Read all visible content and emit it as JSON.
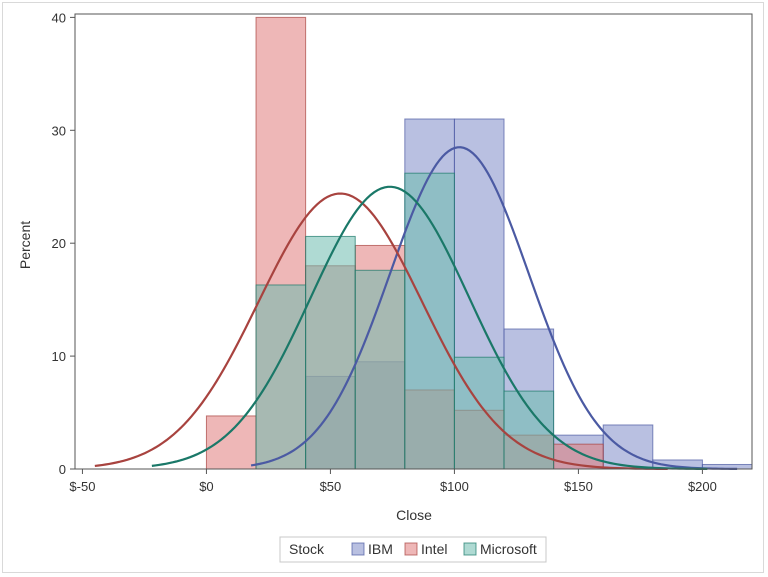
{
  "chart_data": {
    "type": "histogram",
    "xlabel": "Close",
    "ylabel": "Percent",
    "xlim": [
      -53,
      220
    ],
    "ylim": [
      0,
      40.3
    ],
    "x_ticks": [
      -50,
      0,
      50,
      100,
      150,
      200
    ],
    "x_tick_labels": [
      "$-50",
      "$0",
      "$50",
      "$100",
      "$150",
      "$200"
    ],
    "y_ticks": [
      0,
      10,
      20,
      30,
      40
    ],
    "y_tick_labels": [
      "0",
      "10",
      "20",
      "30",
      "40"
    ],
    "bin_edges": [
      0,
      20,
      40,
      60,
      80,
      100,
      120,
      140,
      160,
      180,
      200,
      220
    ],
    "legend": {
      "title": "Stock",
      "position": "bottom"
    },
    "series": [
      {
        "name": "IBM",
        "color": "#7f8cc9",
        "curve_color": "#4b5aa3",
        "values": [
          0,
          0,
          8.2,
          9.5,
          31,
          31,
          12.4,
          3,
          3.9,
          0.8,
          0.4
        ],
        "normal_fit": {
          "mean": 102,
          "sd": 28,
          "peak": 28.5
        }
      },
      {
        "name": "Intel",
        "color": "#e07b7b",
        "curve_color": "#a8433f",
        "values": [
          4.7,
          40,
          18,
          19.8,
          7,
          5.2,
          3,
          2.2,
          0,
          0,
          0
        ],
        "normal_fit": {
          "mean": 54,
          "sd": 33,
          "peak": 24.4
        }
      },
      {
        "name": "Microsoft",
        "color": "#6dbcae",
        "curve_color": "#1a7868",
        "values": [
          0,
          16.3,
          20.6,
          17.6,
          26.2,
          9.9,
          6.9,
          0,
          0,
          0,
          0
        ],
        "normal_fit": {
          "mean": 74,
          "sd": 32,
          "peak": 25
        }
      }
    ]
  }
}
